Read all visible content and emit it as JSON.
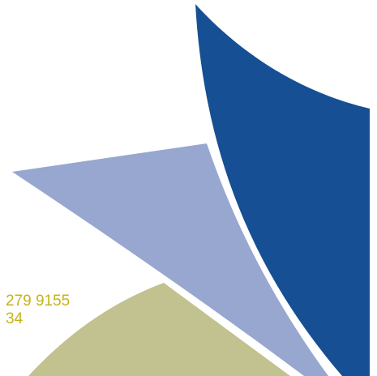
{
  "graphic": {
    "shapes": [
      {
        "name": "olive-shape",
        "color": "#c2c190"
      },
      {
        "name": "light-blue-triangle",
        "color": "#97a7cf"
      },
      {
        "name": "dark-blue-blade",
        "color": "#164f93"
      }
    ]
  },
  "contact": {
    "line1": "279 9155",
    "line2": "34",
    "color": "#c6b319"
  }
}
